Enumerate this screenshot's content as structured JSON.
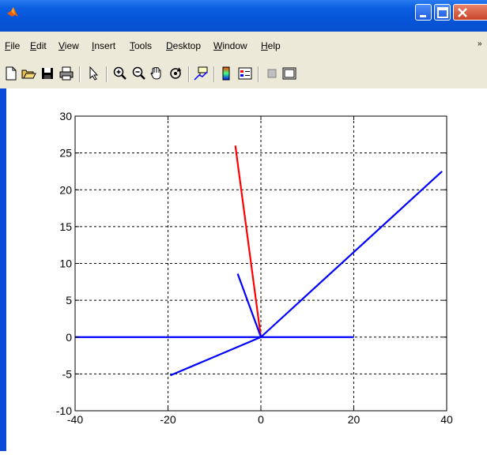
{
  "window": {
    "icon": "matlab-icon",
    "buttons": [
      "minimize-icon",
      "maximize-icon",
      "close-icon"
    ]
  },
  "menubar": {
    "items": [
      {
        "label": "File",
        "key": "F"
      },
      {
        "label": "Edit",
        "key": "E"
      },
      {
        "label": "View",
        "key": "V"
      },
      {
        "label": "Insert",
        "key": "I"
      },
      {
        "label": "Tools",
        "key": "T"
      },
      {
        "label": "Desktop",
        "key": "D"
      },
      {
        "label": "Window",
        "key": "W"
      },
      {
        "label": "Help",
        "key": "H"
      }
    ],
    "overflow_icon": "chevron-right-icon"
  },
  "toolbar": {
    "icons": [
      "new-file-icon",
      "open-folder-icon",
      "save-icon",
      "print-icon",
      "pointer-icon",
      "zoom-in-icon",
      "zoom-out-icon",
      "pan-hand-icon",
      "rotate-3d-icon",
      "data-cursor-icon",
      "colorbar-icon",
      "legend-icon",
      "hide-plot-tools-icon",
      "show-plot-tools-icon"
    ]
  },
  "colors": {
    "red_line": "#ff0000",
    "blue_line": "#0000ff",
    "grid": "#000000"
  },
  "chart_data": {
    "type": "line",
    "title": "",
    "xlabel": "",
    "ylabel": "",
    "xlim": [
      -40,
      40
    ],
    "ylim": [
      -10,
      30
    ],
    "xticks": [
      -40,
      -20,
      0,
      20,
      40
    ],
    "yticks": [
      -10,
      -5,
      0,
      5,
      10,
      15,
      20,
      25,
      30
    ],
    "xtick_labels": [
      "-40",
      "-20",
      "0",
      "20",
      "40"
    ],
    "ytick_labels": [
      "-10",
      "-5",
      "0",
      "5",
      "10",
      "15",
      "20",
      "25",
      "30"
    ],
    "grid": true,
    "grid_style": "dashed",
    "series": [
      {
        "color": "#ff0000",
        "x": [
          0,
          -5.5
        ],
        "y": [
          0,
          26
        ]
      },
      {
        "color": "#0000ff",
        "x": [
          0,
          -5
        ],
        "y": [
          0,
          8.6
        ]
      },
      {
        "color": "#0000ff",
        "x": [
          0,
          39
        ],
        "y": [
          0,
          22.5
        ]
      },
      {
        "color": "#0000ff",
        "x": [
          -40,
          20
        ],
        "y": [
          0,
          0
        ]
      },
      {
        "color": "#0000ff",
        "x": [
          0,
          -19.5
        ],
        "y": [
          0,
          -5.2
        ]
      }
    ]
  }
}
